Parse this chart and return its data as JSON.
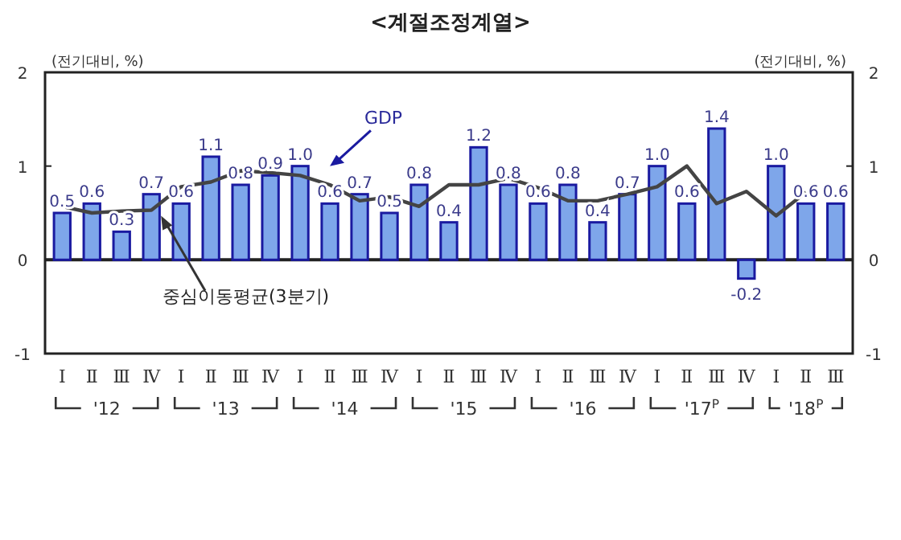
{
  "chart_data": {
    "type": "bar",
    "title": "<계절조정계열>",
    "ylabel": "(전기대비, %)",
    "y2label": "(전기대비, %)",
    "categories": [
      "Ⅰ",
      "Ⅱ",
      "Ⅲ",
      "Ⅳ",
      "Ⅰ",
      "Ⅱ",
      "Ⅲ",
      "Ⅳ",
      "Ⅰ",
      "Ⅱ",
      "Ⅲ",
      "Ⅳ",
      "Ⅰ",
      "Ⅱ",
      "Ⅲ",
      "Ⅳ",
      "Ⅰ",
      "Ⅱ",
      "Ⅲ",
      "Ⅳ",
      "Ⅰ",
      "Ⅱ",
      "Ⅲ",
      "Ⅳ",
      "Ⅰ",
      "Ⅱ",
      "Ⅲ"
    ],
    "series": [
      {
        "name": "GDP",
        "color": "#7ea6ea",
        "values": [
          0.5,
          0.6,
          0.3,
          0.7,
          0.6,
          1.1,
          0.8,
          0.9,
          1.0,
          0.6,
          0.7,
          0.5,
          0.8,
          0.4,
          1.2,
          0.8,
          0.6,
          0.8,
          0.4,
          0.7,
          1.0,
          0.6,
          1.4,
          -0.2,
          1.0,
          0.6,
          0.6
        ],
        "value_labels": [
          "0.5",
          "0.6",
          "0.3",
          "0.7",
          "0.6",
          "1.1",
          "0.8",
          "0.9",
          "1.0",
          "0.6",
          "0.7",
          "0.5",
          "0.8",
          "0.4",
          "1.2",
          "0.8",
          "0.6",
          "0.8",
          "0.4",
          "0.7",
          "1.0",
          "0.6",
          "1.4",
          "-0.2",
          "1.0",
          "0.6",
          "0.6"
        ]
      },
      {
        "name": "중심이동평균(3분기)",
        "type": "line",
        "color": "#444444",
        "values": [
          0.57,
          0.5,
          0.52,
          0.53,
          0.78,
          0.83,
          0.95,
          0.93,
          0.9,
          0.8,
          0.63,
          0.67,
          0.57,
          0.8,
          0.8,
          0.87,
          0.77,
          0.63,
          0.63,
          0.7,
          0.78,
          1.0,
          0.6,
          0.73,
          0.47,
          0.72,
          null
        ]
      }
    ],
    "annotations": [
      "'12",
      "'13",
      "'14",
      "'15",
      "'16",
      "'17$^{P}$",
      "'18$^{P}$"
    ],
    "ylim": [
      -1,
      2
    ],
    "yticks": [
      -1,
      0,
      1,
      2
    ],
    "y2lim": [
      -1,
      2
    ],
    "y2ticks": [
      -1,
      0,
      1,
      2
    ],
    "marker": "none",
    "line_style": "solid"
  }
}
